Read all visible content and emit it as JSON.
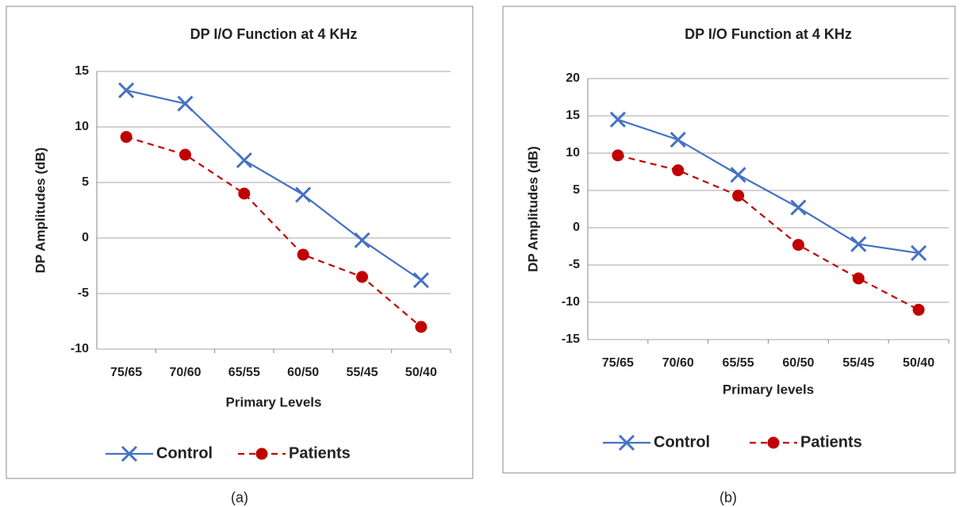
{
  "chart_data": [
    {
      "type": "line",
      "title": "DP I/O Function at 4 KHz",
      "x_label": "Primary Levels",
      "y_label": "DP Amplitudes (dB)",
      "caption": "(a)",
      "categories": [
        "75/65",
        "70/60",
        "65/55",
        "60/50",
        "55/45",
        "50/40"
      ],
      "series": [
        {
          "name": "Control",
          "color": "#4472c4",
          "values": [
            13.3,
            12.1,
            7,
            3.9,
            -0.2,
            -3.8
          ]
        },
        {
          "name": "Patients",
          "color": "#c00000",
          "values": [
            9.1,
            7.5,
            4,
            -1.5,
            -3.5,
            -8
          ]
        }
      ],
      "ylim": [
        -10,
        15
      ],
      "yticks": [
        -10,
        -5,
        0,
        5,
        10,
        15
      ],
      "grid": true,
      "legend": "bottom"
    },
    {
      "type": "line",
      "title": "DP I/O Function at 4 KHz",
      "x_label": "Primary levels",
      "y_label": "DP Amplitudes (dB)",
      "caption": "(b)",
      "categories": [
        "75/65",
        "70/60",
        "65/55",
        "60/50",
        "55/45",
        "50/40"
      ],
      "series": [
        {
          "name": "Control",
          "color": "#4472c4",
          "values": [
            14.5,
            11.8,
            7.1,
            2.7,
            -2.2,
            -3.4
          ]
        },
        {
          "name": "Patients",
          "color": "#c00000",
          "values": [
            9.7,
            7.7,
            4.3,
            -2.3,
            -6.8,
            -11
          ]
        }
      ],
      "ylim": [
        -15,
        20
      ],
      "yticks": [
        -15,
        -10,
        -5,
        0,
        5,
        10,
        15,
        20
      ],
      "grid": true,
      "legend": "bottom"
    }
  ]
}
